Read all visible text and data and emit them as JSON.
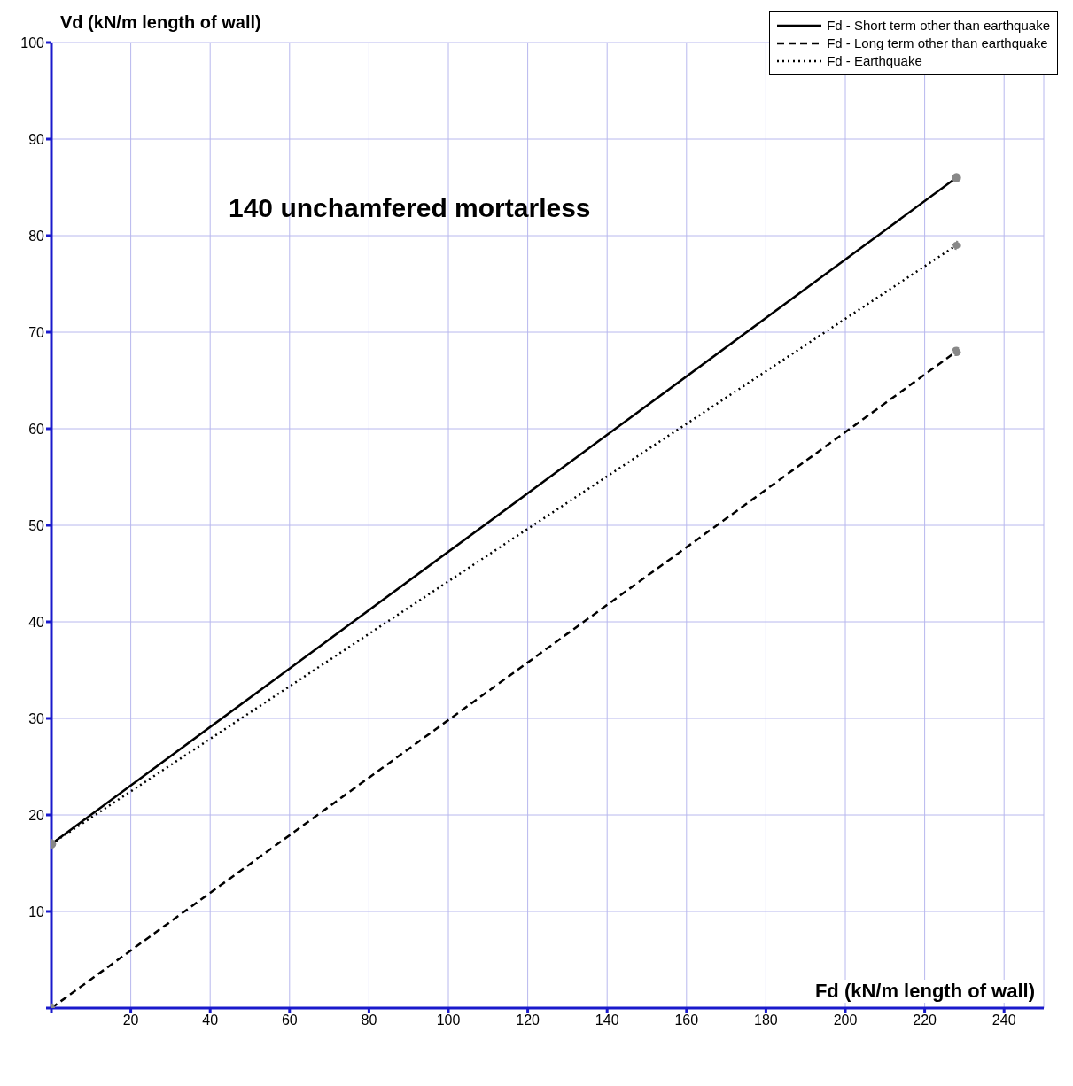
{
  "chart_data": {
    "type": "line",
    "xlabel": "Fd (kN/m length of wall)",
    "ylabel": "Vd (kN/m length of wall)",
    "annotations": [
      "140 unchamfered mortarless"
    ],
    "x": [
      0,
      228
    ],
    "series": [
      {
        "name": "Fd - Short term other than earthquake",
        "color": "#000000",
        "line_style": "solid",
        "values": [
          17,
          86
        ]
      },
      {
        "name": "Fd - Long term other than earthquake",
        "color": "#000000",
        "line_style": "dashed",
        "values": [
          0,
          68
        ]
      },
      {
        "name": "Fd - Earthquake",
        "color": "#000000",
        "line_style": "dotted",
        "values": [
          17,
          79
        ]
      }
    ],
    "xlim": [
      0,
      250
    ],
    "xticks": [
      {
        "value": 0,
        "label": null
      },
      20,
      40,
      60,
      80,
      100,
      120,
      140,
      160,
      180,
      200,
      220,
      240
    ],
    "ylim": [
      0,
      100
    ],
    "yticks": [
      {
        "value": 0,
        "label": null
      },
      10,
      20,
      30,
      40,
      50,
      60,
      70,
      80,
      90,
      100
    ],
    "grid": true,
    "legend": "top right",
    "marker": "circle"
  }
}
